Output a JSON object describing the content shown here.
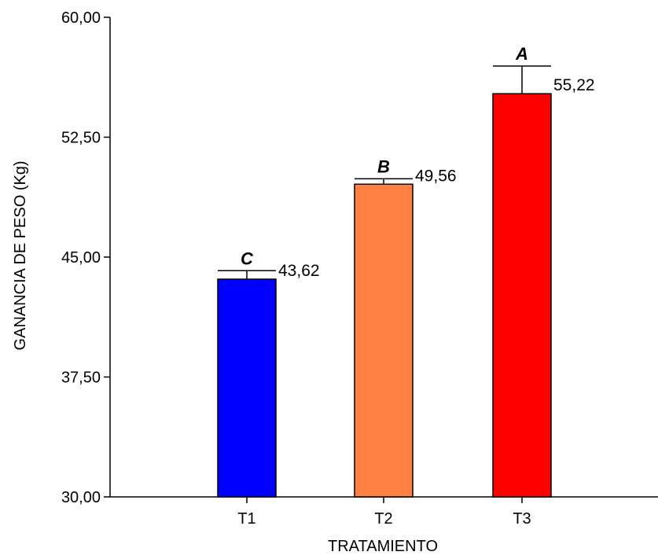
{
  "chart_data": {
    "type": "bar",
    "categories": [
      "T1",
      "T2",
      "T3"
    ],
    "values": [
      43.62,
      49.56,
      55.22
    ],
    "value_labels": [
      "43,62",
      "49,56",
      "55,22"
    ],
    "error_upper": [
      44.15,
      49.9,
      56.95
    ],
    "significance_letters": [
      "C",
      "B",
      "A"
    ],
    "bar_colors": [
      "#0000ff",
      "#ff8040",
      "#ff0000"
    ],
    "xlabel": "TRATAMIENTO",
    "ylabel": "GANANCIA DE PESO (Kg)",
    "ylim": [
      30,
      60
    ],
    "yticks": [
      30,
      37.5,
      45,
      52.5,
      60
    ],
    "ytick_labels": [
      "30,00",
      "37,50",
      "45,00",
      "52,50",
      "60,00"
    ],
    "grid": false,
    "legend": "none"
  }
}
